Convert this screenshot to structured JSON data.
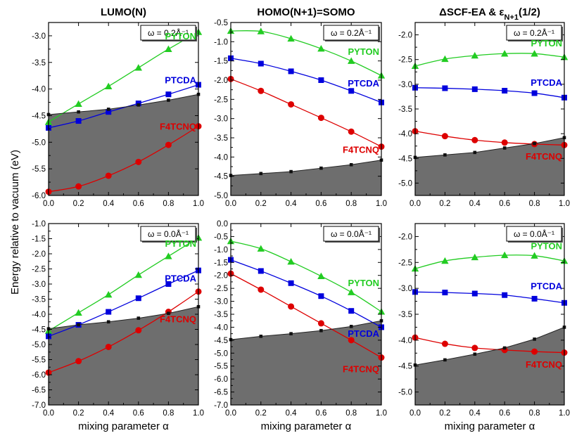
{
  "figure": {
    "ylabel_shared": "Energy relative to vacuum (eV)",
    "xlabel_shared": "mixing parameter α"
  },
  "colors": {
    "PYTON": "#22cc22",
    "PTCDA": "#0000dd",
    "F4TCNQ": "#dd0000",
    "shade": "#6e6e6e",
    "frame": "#000000"
  },
  "series_labels": [
    "PYTON",
    "PTCDA",
    "F4TCNQ"
  ],
  "chart_data": [
    {
      "type": "line",
      "column": 0,
      "row": 0,
      "title": "LUMO(N)",
      "omega_label": "ω = 0.2Å⁻¹",
      "ylabel": "Energy relative to vacuum (eV)",
      "xlabel": "",
      "xlim": [
        0,
        1
      ],
      "ylim": [
        -6.0,
        -2.75
      ],
      "y_ticks": [
        -3.0,
        -3.5,
        -4.0,
        -4.5,
        -5.0,
        -5.5,
        -6.0
      ],
      "x_ticks": [
        0.0,
        0.2,
        0.4,
        0.6,
        0.8,
        1.0
      ],
      "x": [
        0.0,
        0.2,
        0.4,
        0.6,
        0.8,
        1.0
      ],
      "series": [
        {
          "name": "PYTON",
          "marker": "triangle",
          "values": [
            -4.62,
            -4.28,
            -3.95,
            -3.6,
            -3.25,
            -2.93
          ]
        },
        {
          "name": "PTCDA",
          "marker": "square",
          "values": [
            -4.73,
            -4.6,
            -4.43,
            -4.27,
            -4.1,
            -3.92
          ]
        },
        {
          "name": "F4TCNQ",
          "marker": "circle",
          "values": [
            -5.93,
            -5.83,
            -5.63,
            -5.37,
            -5.05,
            -4.7
          ]
        },
        {
          "name": "baseline",
          "marker": "small-square",
          "values": [
            -4.48,
            -4.43,
            -4.38,
            -4.3,
            -4.21,
            -4.1
          ]
        }
      ],
      "label_y": {
        "PYTON": -3.0,
        "PTCDA": -3.83,
        "F4TCNQ": -4.7
      }
    },
    {
      "type": "line",
      "column": 1,
      "row": 0,
      "title": "HOMO(N+1)=SOMO",
      "omega_label": "ω = 0.2Å⁻¹",
      "ylabel": "",
      "xlabel": "",
      "xlim": [
        0,
        1
      ],
      "ylim": [
        -5.0,
        -0.5
      ],
      "y_ticks": [
        -0.5,
        -1.0,
        -1.5,
        -2.0,
        -2.5,
        -3.0,
        -3.5,
        -4.0,
        -4.5,
        -5.0
      ],
      "x_ticks": [
        0.0,
        0.2,
        0.4,
        0.6,
        0.8,
        1.0
      ],
      "x": [
        0.0,
        0.2,
        0.4,
        0.6,
        0.8,
        1.0
      ],
      "series": [
        {
          "name": "PYTON",
          "marker": "triangle",
          "values": [
            -0.72,
            -0.73,
            -0.92,
            -1.18,
            -1.5,
            -1.88
          ]
        },
        {
          "name": "PTCDA",
          "marker": "square",
          "values": [
            -1.43,
            -1.57,
            -1.77,
            -2.0,
            -2.28,
            -2.58
          ]
        },
        {
          "name": "F4TCNQ",
          "marker": "circle",
          "values": [
            -1.97,
            -2.28,
            -2.63,
            -2.98,
            -3.34,
            -3.73
          ]
        },
        {
          "name": "baseline",
          "marker": "small-square",
          "values": [
            -4.48,
            -4.43,
            -4.38,
            -4.29,
            -4.2,
            -4.08
          ]
        }
      ],
      "label_y": {
        "PYTON": -1.25,
        "PTCDA": -2.07,
        "F4TCNQ": -3.8
      }
    },
    {
      "type": "line",
      "column": 2,
      "row": 0,
      "title": "ΔSCF-EA & εN+1(1/2)",
      "title_main": "ΔSCF-EA & ε",
      "title_sub": "N+1",
      "title_tail": "(1/2)",
      "omega_label": "ω = 0.2Å⁻¹",
      "ylabel": "",
      "xlabel": "",
      "xlim": [
        0,
        1
      ],
      "ylim": [
        -5.25,
        -1.75
      ],
      "y_ticks": [
        -2.0,
        -2.5,
        -3.0,
        -3.5,
        -4.0,
        -4.5,
        -5.0
      ],
      "x_ticks": [
        0.0,
        0.2,
        0.4,
        0.6,
        0.8,
        1.0
      ],
      "x": [
        0.0,
        0.2,
        0.4,
        0.6,
        0.8,
        1.0
      ],
      "series": [
        {
          "name": "PYTON",
          "marker": "triangle",
          "values": [
            -2.63,
            -2.49,
            -2.42,
            -2.38,
            -2.38,
            -2.45
          ]
        },
        {
          "name": "PTCDA",
          "marker": "square",
          "values": [
            -3.07,
            -3.08,
            -3.1,
            -3.13,
            -3.18,
            -3.27
          ]
        },
        {
          "name": "F4TCNQ",
          "marker": "circle",
          "values": [
            -3.95,
            -4.05,
            -4.13,
            -4.18,
            -4.21,
            -4.23
          ]
        },
        {
          "name": "baseline",
          "marker": "small-square",
          "values": [
            -4.48,
            -4.43,
            -4.38,
            -4.29,
            -4.2,
            -4.08
          ]
        }
      ],
      "label_y": {
        "PYTON": -2.16,
        "PTCDA": -2.96,
        "F4TCNQ": -4.45
      }
    },
    {
      "type": "line",
      "column": 0,
      "row": 1,
      "title": "",
      "omega_label": "ω = 0.0Å⁻¹",
      "ylabel": "Energy relative to vacuum (eV)",
      "xlabel": "mixing parameter α",
      "xlim": [
        0,
        1
      ],
      "ylim": [
        -7.0,
        -1.0
      ],
      "y_ticks": [
        -1.0,
        -1.5,
        -2.0,
        -2.5,
        -3.0,
        -3.5,
        -4.0,
        -4.5,
        -5.0,
        -5.5,
        -6.0,
        -6.5,
        -7.0
      ],
      "x_ticks": [
        0.0,
        0.2,
        0.4,
        0.6,
        0.8,
        1.0
      ],
      "x": [
        0.0,
        0.2,
        0.4,
        0.6,
        0.8,
        1.0
      ],
      "series": [
        {
          "name": "PYTON",
          "marker": "triangle",
          "values": [
            -4.55,
            -3.95,
            -3.35,
            -2.7,
            -2.08,
            -1.47
          ]
        },
        {
          "name": "PTCDA",
          "marker": "square",
          "values": [
            -4.73,
            -4.35,
            -3.92,
            -3.47,
            -3.0,
            -2.55
          ]
        },
        {
          "name": "F4TCNQ",
          "marker": "circle",
          "values": [
            -5.93,
            -5.55,
            -5.08,
            -4.53,
            -3.92,
            -3.25
          ]
        },
        {
          "name": "baseline",
          "marker": "small-square",
          "values": [
            -4.48,
            -4.35,
            -4.25,
            -4.13,
            -3.97,
            -3.75
          ]
        }
      ],
      "label_y": {
        "PYTON": -1.65,
        "PTCDA": -2.8,
        "F4TCNQ": -4.15
      }
    },
    {
      "type": "line",
      "column": 1,
      "row": 1,
      "title": "",
      "omega_label": "ω = 0.0Å⁻¹",
      "ylabel": "",
      "xlabel": "mixing parameter α",
      "xlim": [
        0,
        1
      ],
      "ylim": [
        -7.0,
        0.0
      ],
      "y_ticks": [
        0.0,
        -0.5,
        -1.0,
        -1.5,
        -2.0,
        -2.5,
        -3.0,
        -3.5,
        -4.0,
        -4.5,
        -5.0,
        -5.5,
        -6.0,
        -6.5,
        -7.0
      ],
      "x_ticks": [
        0.0,
        0.2,
        0.4,
        0.6,
        0.8,
        1.0
      ],
      "x": [
        0.0,
        0.2,
        0.4,
        0.6,
        0.8,
        1.0
      ],
      "series": [
        {
          "name": "PYTON",
          "marker": "triangle",
          "values": [
            -0.68,
            -0.97,
            -1.47,
            -2.03,
            -2.65,
            -3.4
          ]
        },
        {
          "name": "PTCDA",
          "marker": "square",
          "values": [
            -1.4,
            -1.83,
            -2.3,
            -2.8,
            -3.37,
            -4.0
          ]
        },
        {
          "name": "F4TCNQ",
          "marker": "circle",
          "values": [
            -1.93,
            -2.55,
            -3.2,
            -3.85,
            -4.5,
            -5.17
          ]
        },
        {
          "name": "baseline",
          "marker": "small-square",
          "values": [
            -4.48,
            -4.35,
            -4.25,
            -4.13,
            -3.97,
            -3.75
          ]
        }
      ],
      "label_y": {
        "PYTON": -2.28,
        "PTCDA": -4.23,
        "F4TCNQ": -5.6
      }
    },
    {
      "type": "line",
      "column": 2,
      "row": 1,
      "title": "",
      "omega_label": "ω = 0.0Å⁻¹",
      "ylabel": "",
      "xlabel": "mixing parameter α",
      "xlim": [
        0,
        1
      ],
      "ylim": [
        -5.25,
        -1.75
      ],
      "y_ticks": [
        -2.0,
        -2.5,
        -3.0,
        -3.5,
        -4.0,
        -4.5,
        -5.0
      ],
      "x_ticks": [
        0.0,
        0.2,
        0.4,
        0.6,
        0.8,
        1.0
      ],
      "x": [
        0.0,
        0.2,
        0.4,
        0.6,
        0.8,
        1.0
      ],
      "series": [
        {
          "name": "PYTON",
          "marker": "triangle",
          "values": [
            -2.62,
            -2.47,
            -2.4,
            -2.36,
            -2.37,
            -2.47
          ]
        },
        {
          "name": "PTCDA",
          "marker": "square",
          "values": [
            -3.07,
            -3.08,
            -3.1,
            -3.13,
            -3.2,
            -3.28
          ]
        },
        {
          "name": "F4TCNQ",
          "marker": "circle",
          "values": [
            -3.95,
            -4.07,
            -4.15,
            -4.19,
            -4.22,
            -4.24
          ]
        },
        {
          "name": "baseline",
          "marker": "small-square",
          "values": [
            -4.48,
            -4.38,
            -4.27,
            -4.15,
            -3.98,
            -3.75
          ]
        }
      ],
      "label_y": {
        "PYTON": -2.18,
        "PTCDA": -2.95,
        "F4TCNQ": -4.46
      }
    }
  ]
}
